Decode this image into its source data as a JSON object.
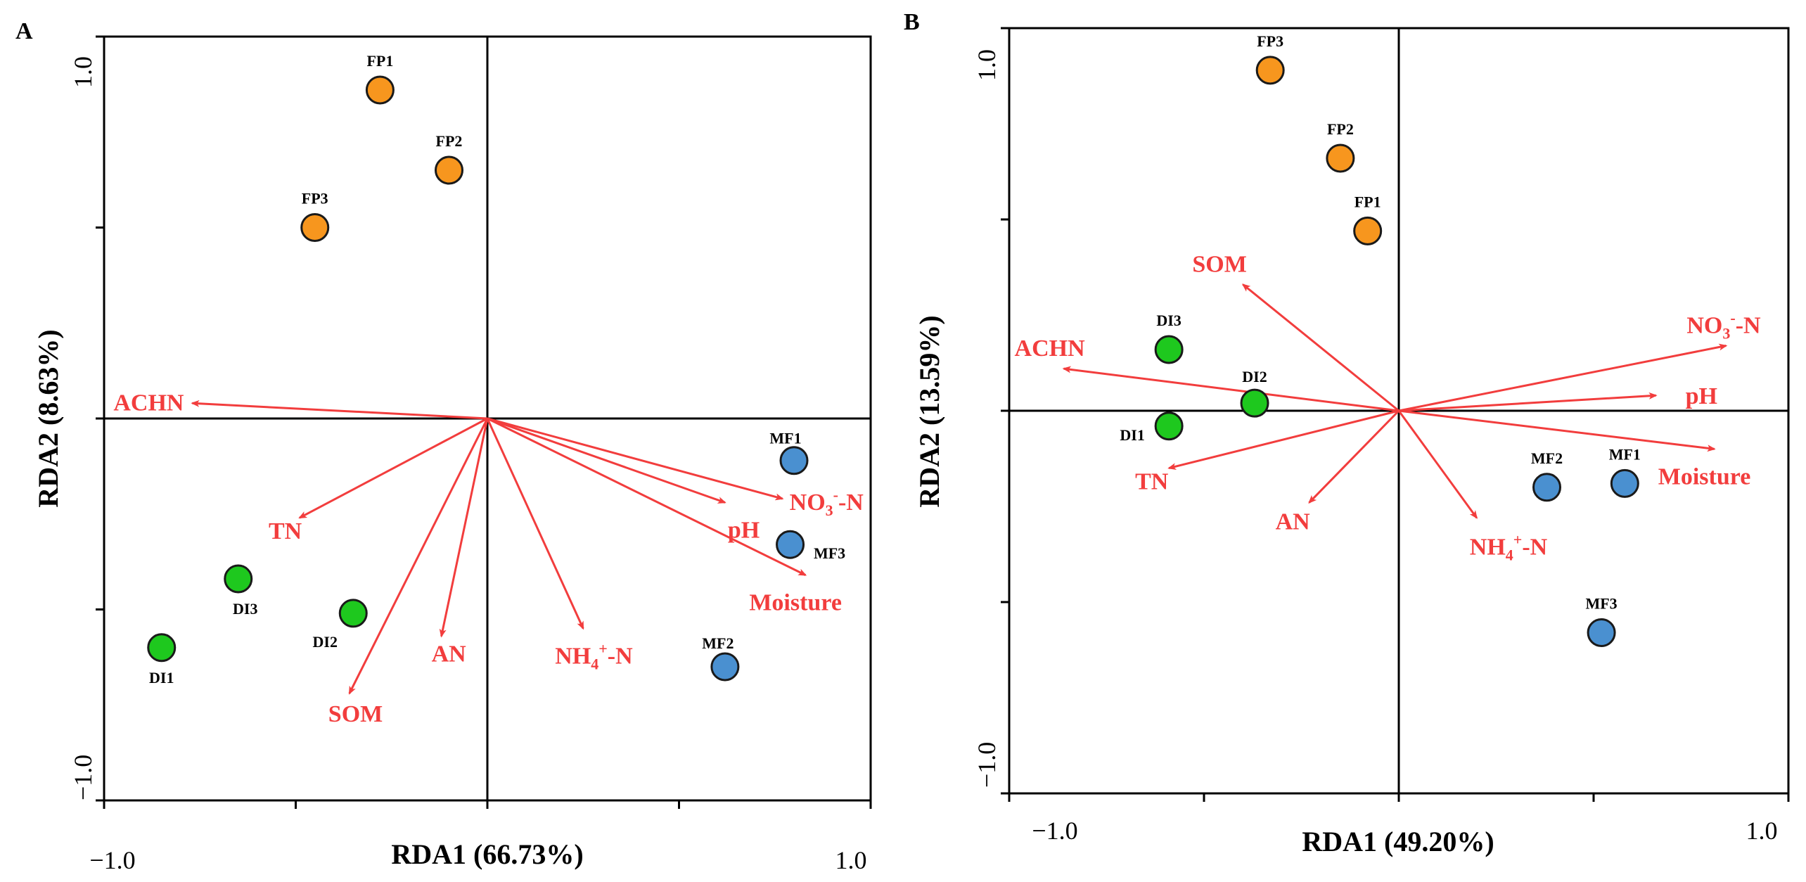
{
  "colors": {
    "arrow": "#f23d3d",
    "FP": "#f7961e",
    "DI": "#1ec81e",
    "MF": "#4a90d0",
    "axis": "#000000",
    "marker_stroke": "#1a1a1a"
  },
  "chart_data": [
    {
      "type": "scatter",
      "panel": "A",
      "xlabel": "RDA1 (66.73%)",
      "ylabel": "RDA2 (8.63%)",
      "xlim": [
        -1.0,
        1.0
      ],
      "ylim": [
        -1.0,
        1.0
      ],
      "xtick_labels": [
        "−1.0",
        "1.0"
      ],
      "ytick_labels": [
        "1.0",
        "−1.0"
      ],
      "points": [
        {
          "label": "FP1",
          "group": "FP",
          "x": -0.28,
          "y": 0.86
        },
        {
          "label": "FP2",
          "group": "FP",
          "x": -0.1,
          "y": 0.65
        },
        {
          "label": "FP3",
          "group": "FP",
          "x": -0.45,
          "y": 0.5
        },
        {
          "label": "DI1",
          "group": "DI",
          "x": -0.85,
          "y": -0.6
        },
        {
          "label": "DI2",
          "group": "DI",
          "x": -0.35,
          "y": -0.51
        },
        {
          "label": "DI3",
          "group": "DI",
          "x": -0.65,
          "y": -0.42
        },
        {
          "label": "MF1",
          "group": "MF",
          "x": 0.8,
          "y": -0.11
        },
        {
          "label": "MF2",
          "group": "MF",
          "x": 0.62,
          "y": -0.65
        },
        {
          "label": "MF3",
          "group": "MF",
          "x": 0.79,
          "y": -0.33
        }
      ],
      "vectors": [
        {
          "label": "ACHN",
          "x": -0.77,
          "y": 0.04
        },
        {
          "label": "TN",
          "x": -0.49,
          "y": -0.26
        },
        {
          "label": "SOM",
          "x": -0.36,
          "y": -0.72
        },
        {
          "label": "AN",
          "x": -0.12,
          "y": -0.57
        },
        {
          "label": "NH4+-N",
          "label_main": "NH",
          "label_sub": "4",
          "label_sup": "+",
          "label_tail": "-N",
          "x": 0.25,
          "y": -0.55
        },
        {
          "label": "pH",
          "x": 0.62,
          "y": -0.22
        },
        {
          "label": "NO3--N",
          "label_main": "NO",
          "label_sub": "3",
          "label_sup": "-",
          "label_tail": "-N",
          "x": 0.77,
          "y": -0.21
        },
        {
          "label": "Moisture",
          "x": 0.83,
          "y": -0.41
        }
      ]
    },
    {
      "type": "scatter",
      "panel": "B",
      "xlabel": "RDA1 (49.20%)",
      "ylabel": "RDA2 (13.59%)",
      "xlim": [
        -1.0,
        1.0
      ],
      "ylim": [
        -1.0,
        1.0
      ],
      "xtick_labels": [
        "−1.0",
        "1.0"
      ],
      "ytick_labels": [
        "1.0",
        "−1.0"
      ],
      "points": [
        {
          "label": "FP1",
          "group": "FP",
          "x": -0.08,
          "y": 0.47
        },
        {
          "label": "FP2",
          "group": "FP",
          "x": -0.15,
          "y": 0.66
        },
        {
          "label": "FP3",
          "group": "FP",
          "x": -0.33,
          "y": 0.89
        },
        {
          "label": "DI1",
          "group": "DI",
          "x": -0.59,
          "y": -0.04
        },
        {
          "label": "DI2",
          "group": "DI",
          "x": -0.37,
          "y": 0.02
        },
        {
          "label": "DI3",
          "group": "DI",
          "x": -0.59,
          "y": 0.16
        },
        {
          "label": "MF1",
          "group": "MF",
          "x": 0.58,
          "y": -0.19
        },
        {
          "label": "MF2",
          "group": "MF",
          "x": 0.38,
          "y": -0.2
        },
        {
          "label": "MF3",
          "group": "MF",
          "x": 0.52,
          "y": -0.58
        }
      ],
      "vectors": [
        {
          "label": "SOM",
          "x": -0.4,
          "y": 0.33
        },
        {
          "label": "ACHN",
          "x": -0.86,
          "y": 0.11
        },
        {
          "label": "TN",
          "x": -0.59,
          "y": -0.15
        },
        {
          "label": "AN",
          "x": -0.23,
          "y": -0.24
        },
        {
          "label": "NH4+-N",
          "label_main": "NH",
          "label_sub": "4",
          "label_sup": "+",
          "label_tail": "-N",
          "x": 0.2,
          "y": -0.28
        },
        {
          "label": "NO3--N",
          "label_main": "NO",
          "label_sub": "3",
          "label_sup": "-",
          "label_tail": "-N",
          "x": 0.84,
          "y": 0.17
        },
        {
          "label": "pH",
          "x": 0.66,
          "y": 0.04
        },
        {
          "label": "Moisture",
          "x": 0.81,
          "y": -0.1
        }
      ]
    }
  ]
}
